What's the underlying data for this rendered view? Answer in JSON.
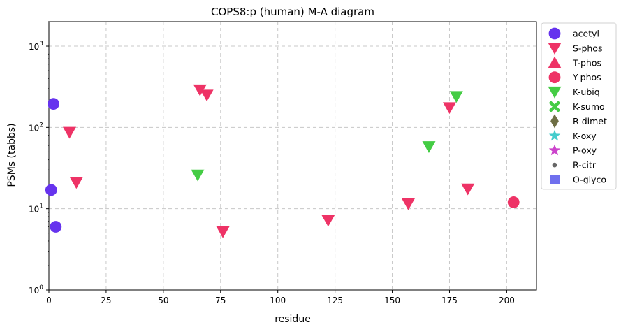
{
  "chart_data": {
    "type": "scatter",
    "title": "COPS8:p (human) M-A diagram",
    "xlabel": "residue",
    "ylabel": "PSMs (tabbs)",
    "xlim": [
      0,
      213
    ],
    "ylim": [
      1,
      2000
    ],
    "yscale": "log",
    "grid": true,
    "legend_position": "outside-right",
    "x_ticks": [
      {
        "value": 0,
        "label": "0"
      },
      {
        "value": 25,
        "label": "25"
      },
      {
        "value": 50,
        "label": "50"
      },
      {
        "value": 75,
        "label": "75"
      },
      {
        "value": 100,
        "label": "100"
      },
      {
        "value": 125,
        "label": "125"
      },
      {
        "value": 150,
        "label": "150"
      },
      {
        "value": 175,
        "label": "175"
      },
      {
        "value": 200,
        "label": "200"
      }
    ],
    "y_ticks": [
      {
        "value": 1,
        "base": "10",
        "exp": "0"
      },
      {
        "value": 10,
        "base": "10",
        "exp": "1"
      },
      {
        "value": 100,
        "base": "10",
        "exp": "2"
      },
      {
        "value": 1000,
        "base": "10",
        "exp": "3"
      }
    ],
    "series": [
      {
        "name": "acetyl",
        "marker": "circle",
        "color": "#6633ee",
        "points": [
          {
            "x": 1,
            "y": 17
          },
          {
            "x": 2,
            "y": 195
          },
          {
            "x": 3,
            "y": 6
          }
        ]
      },
      {
        "name": "S-phos",
        "marker": "triangle-down",
        "color": "#ee3366",
        "points": [
          {
            "x": 9,
            "y": 87
          },
          {
            "x": 12,
            "y": 21
          },
          {
            "x": 66,
            "y": 290
          },
          {
            "x": 69,
            "y": 250
          },
          {
            "x": 76,
            "y": 5.2
          },
          {
            "x": 122,
            "y": 7.2
          },
          {
            "x": 157,
            "y": 11.5
          },
          {
            "x": 175,
            "y": 175
          },
          {
            "x": 183,
            "y": 17.5
          }
        ]
      },
      {
        "name": "T-phos",
        "marker": "triangle-up",
        "color": "#ee3366",
        "points": []
      },
      {
        "name": "Y-phos",
        "marker": "circle",
        "color": "#ee3366",
        "points": [
          {
            "x": 203,
            "y": 12
          }
        ]
      },
      {
        "name": "K-ubiq",
        "marker": "triangle-down",
        "color": "#44cc44",
        "points": [
          {
            "x": 65,
            "y": 26
          },
          {
            "x": 166,
            "y": 58
          },
          {
            "x": 178,
            "y": 240
          }
        ]
      },
      {
        "name": "K-sumo",
        "marker": "x",
        "color": "#44cc44",
        "points": []
      },
      {
        "name": "R-dimet",
        "marker": "diamond",
        "color": "#6e6e44",
        "points": []
      },
      {
        "name": "K-oxy",
        "marker": "star",
        "color": "#44cccc",
        "points": []
      },
      {
        "name": "P-oxy",
        "marker": "star",
        "color": "#cc44cc",
        "points": []
      },
      {
        "name": "R-citr",
        "marker": "dot",
        "color": "#666666",
        "points": []
      },
      {
        "name": "O-glyco",
        "marker": "square",
        "color": "#7070ee",
        "points": []
      }
    ]
  }
}
